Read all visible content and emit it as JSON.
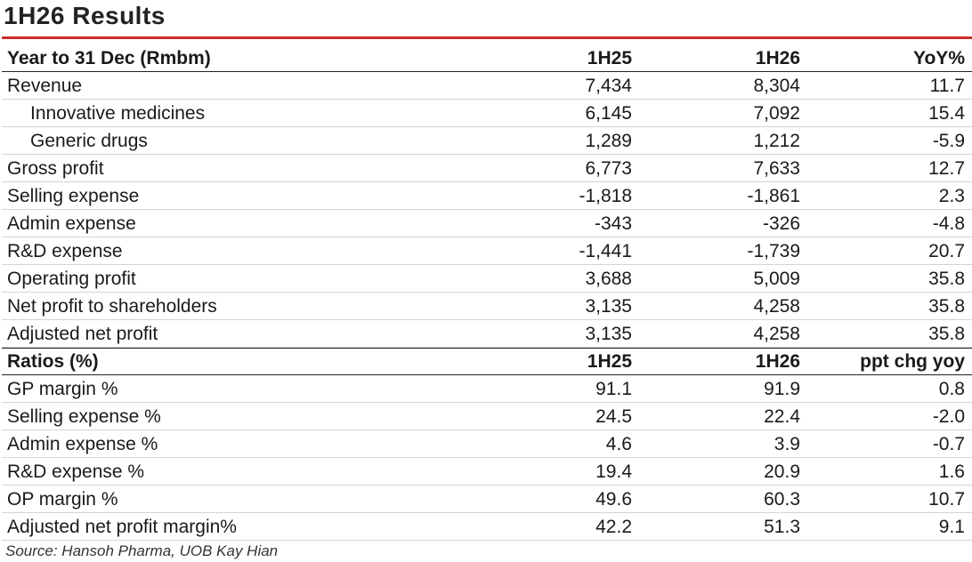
{
  "title": "1H26 Results",
  "results": {
    "header": {
      "label": "Year to 31 Dec (Rmbm)",
      "col1": "1H25",
      "col2": "1H26",
      "col3": "YoY%"
    },
    "rows": [
      {
        "label": "Revenue",
        "v1": "7,434",
        "v2": "8,304",
        "v3": "11.7",
        "indent": false
      },
      {
        "label": "Innovative medicines",
        "v1": "6,145",
        "v2": "7,092",
        "v3": "15.4",
        "indent": true
      },
      {
        "label": "Generic drugs",
        "v1": "1,289",
        "v2": "1,212",
        "v3": "-5.9",
        "indent": true
      },
      {
        "label": "Gross profit",
        "v1": "6,773",
        "v2": "7,633",
        "v3": "12.7",
        "indent": false
      },
      {
        "label": "Selling expense",
        "v1": "-1,818",
        "v2": "-1,861",
        "v3": "2.3",
        "indent": false
      },
      {
        "label": "Admin expense",
        "v1": "-343",
        "v2": "-326",
        "v3": "-4.8",
        "indent": false
      },
      {
        "label": "R&D expense",
        "v1": "-1,441",
        "v2": "-1,739",
        "v3": "20.7",
        "indent": false
      },
      {
        "label": "Operating profit",
        "v1": "3,688",
        "v2": "5,009",
        "v3": "35.8",
        "indent": false
      },
      {
        "label": "Net profit to shareholders",
        "v1": "3,135",
        "v2": "4,258",
        "v3": "35.8",
        "indent": false
      },
      {
        "label": "Adjusted net profit",
        "v1": "3,135",
        "v2": "4,258",
        "v3": "35.8",
        "indent": false
      }
    ]
  },
  "ratios": {
    "header": {
      "label": "Ratios (%)",
      "col1": "1H25",
      "col2": "1H26",
      "col3": "ppt chg yoy"
    },
    "rows": [
      {
        "label": "GP margin %",
        "v1": "91.1",
        "v2": "91.9",
        "v3": "0.8"
      },
      {
        "label": "Selling expense %",
        "v1": "24.5",
        "v2": "22.4",
        "v3": "-2.0"
      },
      {
        "label": "Admin expense %",
        "v1": "4.6",
        "v2": "3.9",
        "v3": "-0.7"
      },
      {
        "label": "R&D expense %",
        "v1": "19.4",
        "v2": "20.9",
        "v3": "1.6"
      },
      {
        "label": "OP margin %",
        "v1": "49.6",
        "v2": "60.3",
        "v3": "10.7"
      },
      {
        "label": "Adjusted net profit margin%",
        "v1": "42.2",
        "v2": "51.3",
        "v3": "9.1"
      }
    ]
  },
  "source": "Source: Hansoh Pharma, UOB Kay Hian",
  "colors": {
    "accent_rule": "#c9302c",
    "text": "#1a1a1a",
    "row_divider": "#d4d4d4"
  }
}
